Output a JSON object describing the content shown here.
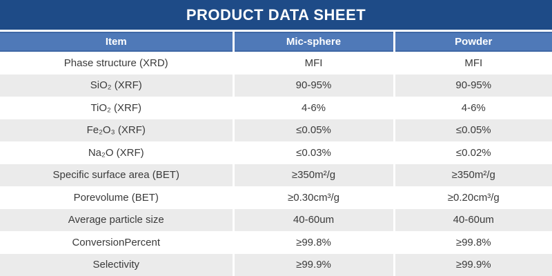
{
  "title": "PRODUCT DATA SHEET",
  "colors": {
    "title_bar_bg": "#1e4b87",
    "header_bg": "#4f79b8",
    "header_border": "#3f67a5",
    "header_text": "#ffffff",
    "row_alt_bg": "#ebebeb",
    "cell_text": "#3a3a3a"
  },
  "table": {
    "columns": [
      "Item",
      "Mic-sphere",
      "Powder"
    ],
    "rows": [
      {
        "item": "Phase structure (XRD)",
        "mic_sphere": "MFI",
        "powder": "MFI"
      },
      {
        "item": "SiO₂ (XRF)",
        "mic_sphere": "90-95%",
        "powder": "90-95%"
      },
      {
        "item": "TiO₂ (XRF)",
        "mic_sphere": "4-6%",
        "powder": "4-6%"
      },
      {
        "item": "Fe₂O₃ (XRF)",
        "mic_sphere": "≤0.05%",
        "powder": "≤0.05%"
      },
      {
        "item": "Na₂O (XRF)",
        "mic_sphere": "≤0.03%",
        "powder": "≤0.02%"
      },
      {
        "item": "Specific surface area (BET)",
        "mic_sphere": "≥350m²/g",
        "powder": "≥350m²/g"
      },
      {
        "item": "Porevolume (BET)",
        "mic_sphere": "≥0.30cm³/g",
        "powder": "≥0.20cm³/g"
      },
      {
        "item": "Average particle size",
        "mic_sphere": "40-60um",
        "powder": "40-60um"
      },
      {
        "item": "ConversionPercent",
        "mic_sphere": "≥99.8%",
        "powder": "≥99.8%"
      },
      {
        "item": "Selectivity",
        "mic_sphere": "≥99.9%",
        "powder": "≥99.9%"
      }
    ]
  }
}
